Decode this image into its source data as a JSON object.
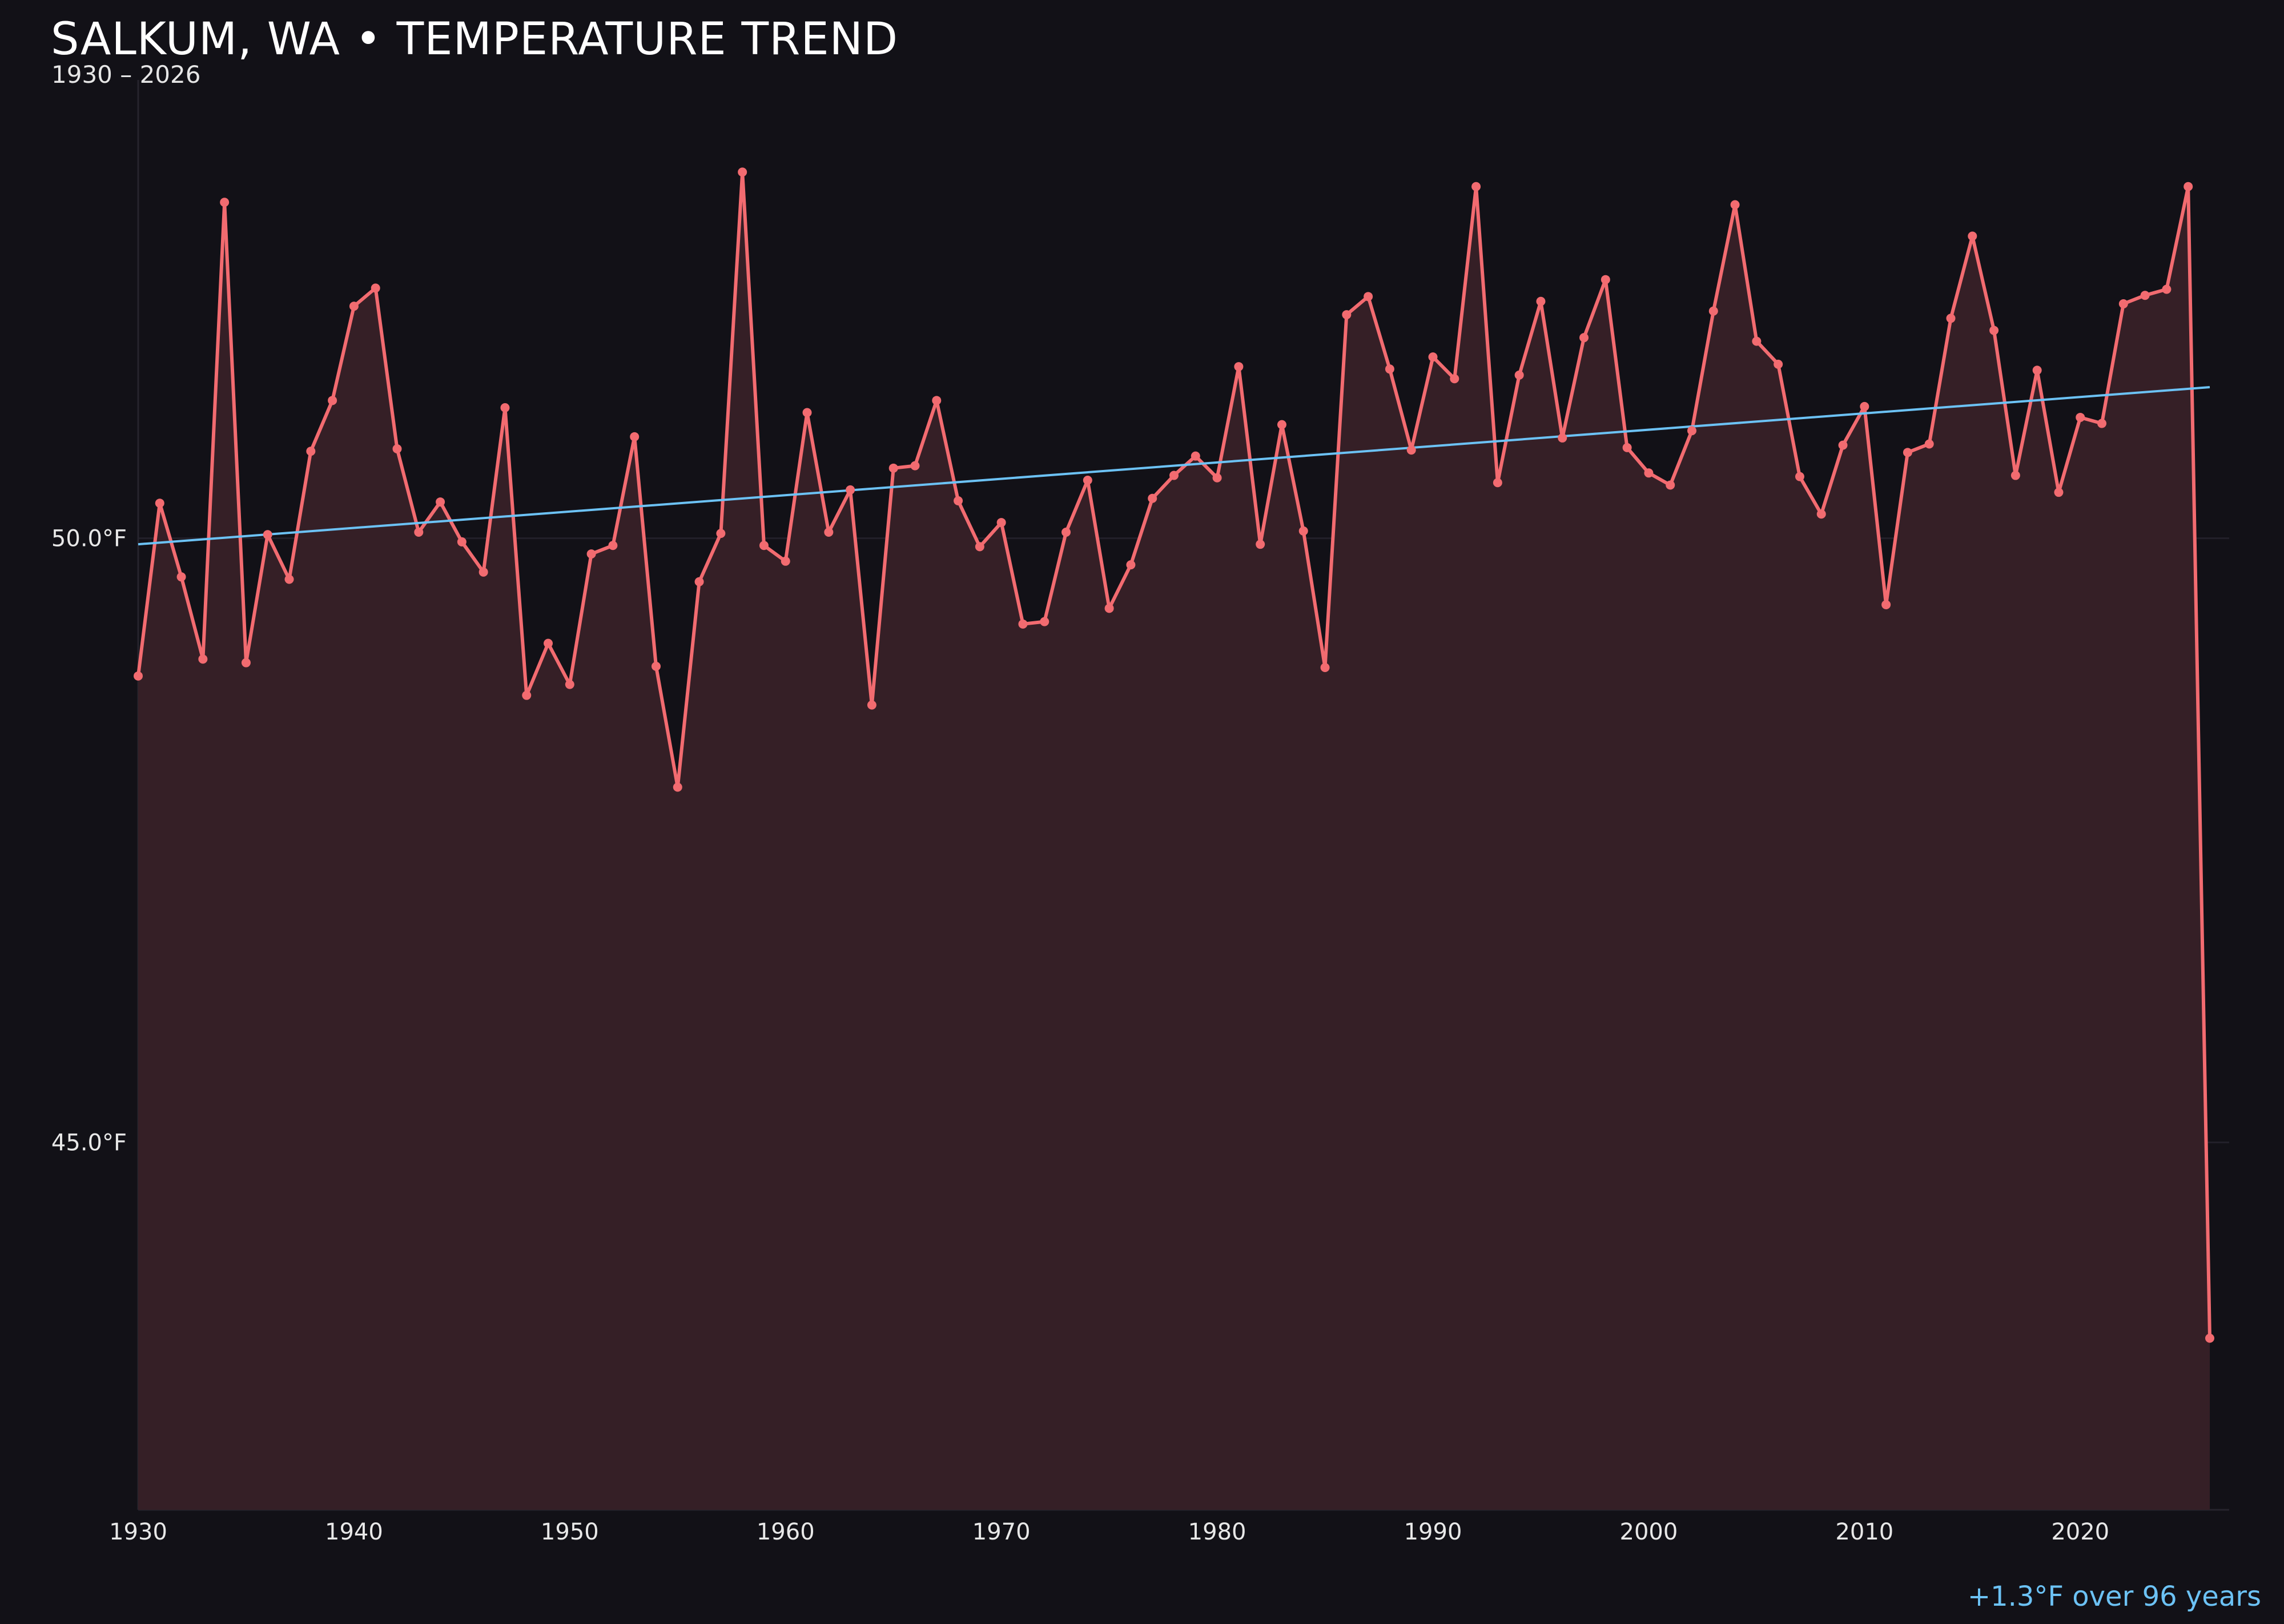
{
  "header": {
    "title": "SALKUM, WA • TEMPERATURE TREND",
    "subtitle": "1930 – 2026"
  },
  "footer": {
    "trend_note": "+1.3°F over 96 years"
  },
  "colors": {
    "background": "#121117",
    "series_line": "#f26b70",
    "area_fill": "#351f26",
    "trend_line": "#6cc2f5",
    "trend_note": "#6cc2f5",
    "grid": "#22202a"
  },
  "chart_data": {
    "type": "line",
    "title": "SALKUM, WA • TEMPERATURE TREND",
    "subtitle": "1930 – 2026",
    "xlabel": "",
    "ylabel": "",
    "xlim": [
      1930,
      2026.9
    ],
    "ylim": [
      41.96,
      53.32
    ],
    "x_ticks": [
      1930,
      1940,
      1950,
      1960,
      1970,
      1980,
      1990,
      2000,
      2010,
      2020
    ],
    "y_ticks": [
      45.0,
      50.0
    ],
    "y_tick_labels": [
      "45.0°F",
      "50.0°F"
    ],
    "grid": "horizontal",
    "series": [
      {
        "x": [
          1930,
          1931,
          1932,
          1933,
          1934,
          1935,
          1936,
          1937,
          1938,
          1939,
          1940,
          1941,
          1942,
          1943,
          1944,
          1945,
          1946,
          1947,
          1948,
          1949,
          1950,
          1951,
          1952,
          1953,
          1954,
          1955,
          1956,
          1957,
          1958,
          1959,
          1960,
          1961,
          1962,
          1963,
          1964,
          1965,
          1966,
          1967,
          1968,
          1969,
          1970,
          1971,
          1972,
          1973,
          1974,
          1975,
          1976,
          1977,
          1978,
          1979,
          1980,
          1981,
          1982,
          1983,
          1984,
          1985,
          1986,
          1987,
          1988,
          1989,
          1990,
          1991,
          1992,
          1993,
          1994,
          1995,
          1996,
          1997,
          1998,
          1999,
          2000,
          2001,
          2002,
          2003,
          2004,
          2005,
          2006,
          2007,
          2008,
          2009,
          2010,
          2011,
          2012,
          2013,
          2014,
          2015,
          2016,
          2017,
          2018,
          2019,
          2020,
          2021,
          2022,
          2023,
          2024,
          2025,
          2026
        ],
        "values": [
          48.86,
          50.29,
          49.68,
          49.0,
          52.78,
          48.97,
          50.03,
          49.66,
          50.72,
          51.14,
          51.92,
          52.07,
          50.74,
          50.05,
          50.3,
          49.97,
          49.72,
          51.08,
          48.7,
          49.13,
          48.79,
          49.87,
          49.94,
          50.84,
          48.94,
          47.94,
          49.64,
          50.04,
          53.03,
          49.94,
          49.81,
          51.04,
          50.05,
          50.4,
          48.62,
          50.58,
          50.6,
          51.14,
          50.31,
          49.93,
          50.13,
          49.29,
          49.31,
          50.05,
          50.48,
          49.42,
          49.78,
          50.33,
          50.52,
          50.68,
          50.5,
          51.42,
          49.95,
          50.94,
          50.06,
          48.93,
          51.85,
          52.0,
          51.4,
          50.73,
          51.5,
          51.32,
          52.91,
          50.46,
          51.35,
          51.96,
          50.83,
          51.66,
          52.14,
          50.75,
          50.54,
          50.44,
          50.89,
          51.88,
          52.76,
          51.63,
          51.44,
          50.51,
          50.2,
          50.77,
          51.09,
          49.45,
          50.71,
          50.78,
          51.82,
          52.5,
          51.72,
          50.52,
          51.39,
          50.38,
          51.0,
          50.95,
          51.94,
          52.01,
          52.06,
          52.91,
          43.38
        ]
      }
    ],
    "trend": {
      "x": [
        1930,
        2026
      ],
      "y": [
        49.95,
        51.25
      ],
      "label": "+1.3°F over 96 years"
    }
  }
}
